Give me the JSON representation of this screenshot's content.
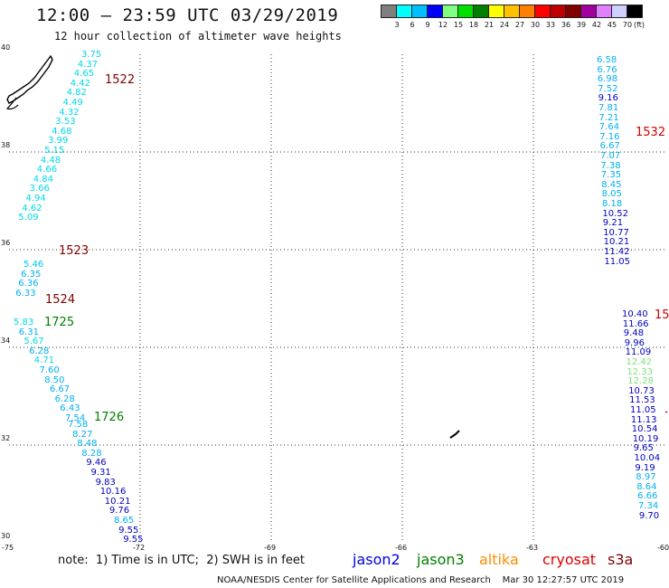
{
  "header": {
    "title": "12:00 – 23:59 UTC 03/29/2019",
    "subtitle": "12 hour collection of altimeter wave heights"
  },
  "legend": {
    "unit": "(ft)",
    "labels": [
      "3",
      "6",
      "9",
      "12",
      "15",
      "18",
      "21",
      "24",
      "27",
      "30",
      "33",
      "36",
      "39",
      "42",
      "45",
      "70"
    ],
    "colors": [
      "#7f7f7f",
      "#00ffff",
      "#00bfff",
      "#0000ff",
      "#80ff80",
      "#00e000",
      "#008000",
      "#ffff00",
      "#ffc000",
      "#ff8000",
      "#ff0000",
      "#c00000",
      "#800000",
      "#a000a0",
      "#e080ff",
      "#d0d0ff",
      "#000000"
    ]
  },
  "map": {
    "lat_range": [
      30,
      40
    ],
    "lon_range": [
      -75,
      -60
    ],
    "lat_ticks": [
      "40",
      "38",
      "36",
      "34",
      "32",
      "30"
    ],
    "lon_ticks": [
      "-75",
      "-72",
      "-69",
      "-66",
      "-63",
      "-60"
    ]
  },
  "tracks": [
    {
      "time": "1522",
      "color": "#800000",
      "points": [
        {
          "v": "3.75",
          "c": "#00d8e8"
        },
        {
          "v": "4.37",
          "c": "#00d8e8"
        },
        {
          "v": "4.65",
          "c": "#00d8e8"
        },
        {
          "v": "4.42",
          "c": "#00d8e8"
        },
        {
          "v": "4.82",
          "c": "#00d8e8"
        },
        {
          "v": "4.49",
          "c": "#00d8e8"
        },
        {
          "v": "4.32",
          "c": "#00d8e8"
        },
        {
          "v": "3.53",
          "c": "#00d8e8"
        },
        {
          "v": "4.68",
          "c": "#00d8e8"
        },
        {
          "v": "3.99",
          "c": "#00d8e8"
        },
        {
          "v": "5.15",
          "c": "#00d8e8"
        },
        {
          "v": "4.48",
          "c": "#00d8e8"
        },
        {
          "v": "4.66",
          "c": "#00d8e8"
        },
        {
          "v": "4.84",
          "c": "#00d8e8"
        },
        {
          "v": "3.66",
          "c": "#00d8e8"
        },
        {
          "v": "4.94",
          "c": "#00d8e8"
        },
        {
          "v": "4.62",
          "c": "#00d8e8"
        },
        {
          "v": "5.09",
          "c": "#00d8e8"
        }
      ]
    },
    {
      "time": "1523",
      "color": "#800000",
      "points": [
        {
          "v": "5.46",
          "c": "#00c8ee"
        },
        {
          "v": "6.35",
          "c": "#00b0f0"
        },
        {
          "v": "6.36",
          "c": "#00b0f0"
        },
        {
          "v": "6.33",
          "c": "#00b0f0"
        }
      ]
    },
    {
      "time": "1524",
      "color": "#800000",
      "points": []
    },
    {
      "time": "1725",
      "color": "#008000",
      "points": [
        {
          "v": "5.83",
          "c": "#00d8e8"
        },
        {
          "v": "6.31",
          "c": "#00b0f0"
        },
        {
          "v": "5.67",
          "c": "#00d8e8"
        },
        {
          "v": "6.28",
          "c": "#00b0f0"
        },
        {
          "v": "4.71",
          "c": "#00d8e8"
        },
        {
          "v": "7.60",
          "c": "#00b0f0"
        },
        {
          "v": "8.50",
          "c": "#00b0f0"
        },
        {
          "v": "6.67",
          "c": "#00b0f0"
        },
        {
          "v": "6.28",
          "c": "#00b0f0"
        },
        {
          "v": "6.43",
          "c": "#00b0f0"
        },
        {
          "v": "7.54",
          "c": "#00b0f0"
        }
      ]
    },
    {
      "time": "1726",
      "color": "#008000",
      "points": [
        {
          "v": "7.58",
          "c": "#00b0f0"
        },
        {
          "v": "8.27",
          "c": "#00b0f0"
        },
        {
          "v": "8.48",
          "c": "#00b0f0"
        },
        {
          "v": "8.28",
          "c": "#00b0f0"
        },
        {
          "v": "9.46",
          "c": "#0000c0"
        },
        {
          "v": "9.31",
          "c": "#0000c0"
        },
        {
          "v": "9.83",
          "c": "#0000c0"
        },
        {
          "v": "10.16",
          "c": "#0000c0"
        },
        {
          "v": "10.21",
          "c": "#0000c0"
        },
        {
          "v": "9.76",
          "c": "#0000c0"
        },
        {
          "v": "8.65",
          "c": "#00b0f0"
        },
        {
          "v": "9.55",
          "c": "#0000c0"
        },
        {
          "v": "9.55",
          "c": "#0000c0"
        }
      ]
    },
    {
      "time": "1532",
      "color": "#cc0000",
      "points": [
        {
          "v": "6.58",
          "c": "#00b0f0"
        },
        {
          "v": "6.76",
          "c": "#00b0f0"
        },
        {
          "v": "6.98",
          "c": "#00b0f0"
        },
        {
          "v": "7.52",
          "c": "#00b0f0"
        },
        {
          "v": "9.16",
          "c": "#0000c0"
        },
        {
          "v": "7.81",
          "c": "#00b0f0"
        },
        {
          "v": "7.21",
          "c": "#00b0f0"
        },
        {
          "v": "7.64",
          "c": "#00b0f0"
        },
        {
          "v": "7.16",
          "c": "#00b0f0"
        },
        {
          "v": "6.67",
          "c": "#00b0f0"
        },
        {
          "v": "7.07",
          "c": "#00b0f0"
        },
        {
          "v": "7.38",
          "c": "#00b0f0"
        },
        {
          "v": "7.35",
          "c": "#00b0f0"
        },
        {
          "v": "8.45",
          "c": "#00b0f0"
        },
        {
          "v": "8.05",
          "c": "#00b0f0"
        },
        {
          "v": "8.18",
          "c": "#00b0f0"
        },
        {
          "v": "10.52",
          "c": "#0000c0"
        },
        {
          "v": "9.21",
          "c": "#0000c0"
        },
        {
          "v": "10.77",
          "c": "#0000c0"
        },
        {
          "v": "10.21",
          "c": "#0000c0"
        },
        {
          "v": "11.42",
          "c": "#0000c0"
        },
        {
          "v": "11.05",
          "c": "#0000c0"
        }
      ]
    },
    {
      "time": "15",
      "color": "#cc0000",
      "points": [
        {
          "v": "10.40",
          "c": "#0000c0"
        },
        {
          "v": "11.66",
          "c": "#0000c0"
        },
        {
          "v": "9.48",
          "c": "#0000c0"
        },
        {
          "v": "9.96",
          "c": "#0000c0"
        },
        {
          "v": "11.09",
          "c": "#0000c0"
        },
        {
          "v": "12.42",
          "c": "#80e080"
        },
        {
          "v": "12.33",
          "c": "#80e080"
        },
        {
          "v": "12.28",
          "c": "#80e080"
        },
        {
          "v": "10.73",
          "c": "#0000c0"
        },
        {
          "v": "11.53",
          "c": "#0000c0"
        },
        {
          "v": "11.05",
          "c": "#0000c0"
        },
        {
          "v": "11.13",
          "c": "#0000c0"
        },
        {
          "v": "10.54",
          "c": "#0000c0"
        },
        {
          "v": "10.19",
          "c": "#0000c0"
        },
        {
          "v": "9.65",
          "c": "#0000c0"
        },
        {
          "v": "10.04",
          "c": "#0000c0"
        },
        {
          "v": "9.19",
          "c": "#0000c0"
        },
        {
          "v": "8.97",
          "c": "#00b0f0"
        },
        {
          "v": "8.64",
          "c": "#00b0f0"
        },
        {
          "v": "6.66",
          "c": "#00b0f0"
        },
        {
          "v": "7.34",
          "c": "#00b0f0"
        },
        {
          "v": "9.70",
          "c": "#0000c0"
        }
      ]
    }
  ],
  "note": "note:  1) Time is in UTC;  2) SWH is in feet",
  "satellites": [
    {
      "name": "jason2",
      "color": "#0000e0"
    },
    {
      "name": "jason3",
      "color": "#008000"
    },
    {
      "name": "altika",
      "color": "#ff8c00"
    },
    {
      "name": "cryosat",
      "color": "#e00000"
    },
    {
      "name": "s3a",
      "color": "#800000"
    }
  ],
  "footer": "NOAA/NESDIS Center for Satellite Applications and Research    Mar 30 12:27:57 UTC 2019"
}
